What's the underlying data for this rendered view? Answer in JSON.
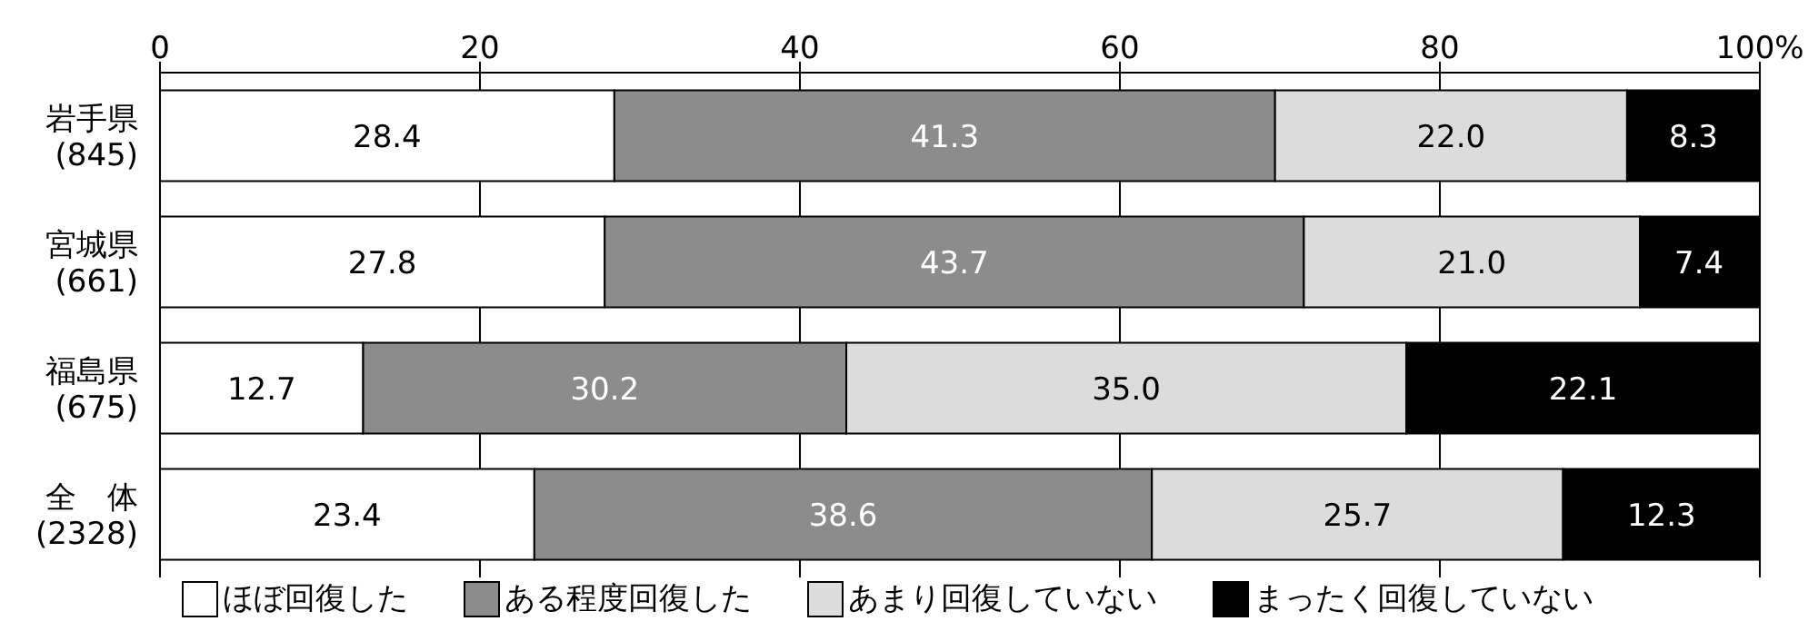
{
  "chart_data": {
    "type": "bar",
    "orientation": "horizontal",
    "stacked": true,
    "categories": [
      "岩手県\n(845)",
      "宮城県\n(661)",
      "福島県\n(675)",
      "全　体\n(2328)"
    ],
    "series": [
      {
        "name": "ほぼ回復した",
        "color": "#ffffff",
        "values": [
          28.4,
          27.8,
          12.7,
          23.4
        ],
        "value_labels": [
          "28.4",
          "27.8",
          "12.7",
          "23.4"
        ]
      },
      {
        "name": "ある程度回復した",
        "color": "#8c8c8c",
        "values": [
          41.3,
          43.7,
          30.2,
          38.6
        ],
        "value_labels": [
          "41.3",
          "43.7",
          "30.2",
          "38.6"
        ]
      },
      {
        "name": "あまり回復していない",
        "color": "#dcdcdc",
        "values": [
          22.0,
          21.0,
          35.0,
          25.7
        ],
        "value_labels": [
          "22.0",
          "21.0",
          "35.0",
          "25.7"
        ]
      },
      {
        "name": "まったく回復していない",
        "color": "#000000",
        "values": [
          8.3,
          7.4,
          22.1,
          12.3
        ],
        "value_labels": [
          "8.3",
          "7.4",
          "22.1",
          "12.3"
        ]
      }
    ],
    "xlim": [
      0,
      100
    ],
    "xticks": [
      0,
      20,
      40,
      60,
      80,
      {
        "value": 100,
        "label": "100%"
      }
    ],
    "grid": "x",
    "legend": "bottom"
  }
}
